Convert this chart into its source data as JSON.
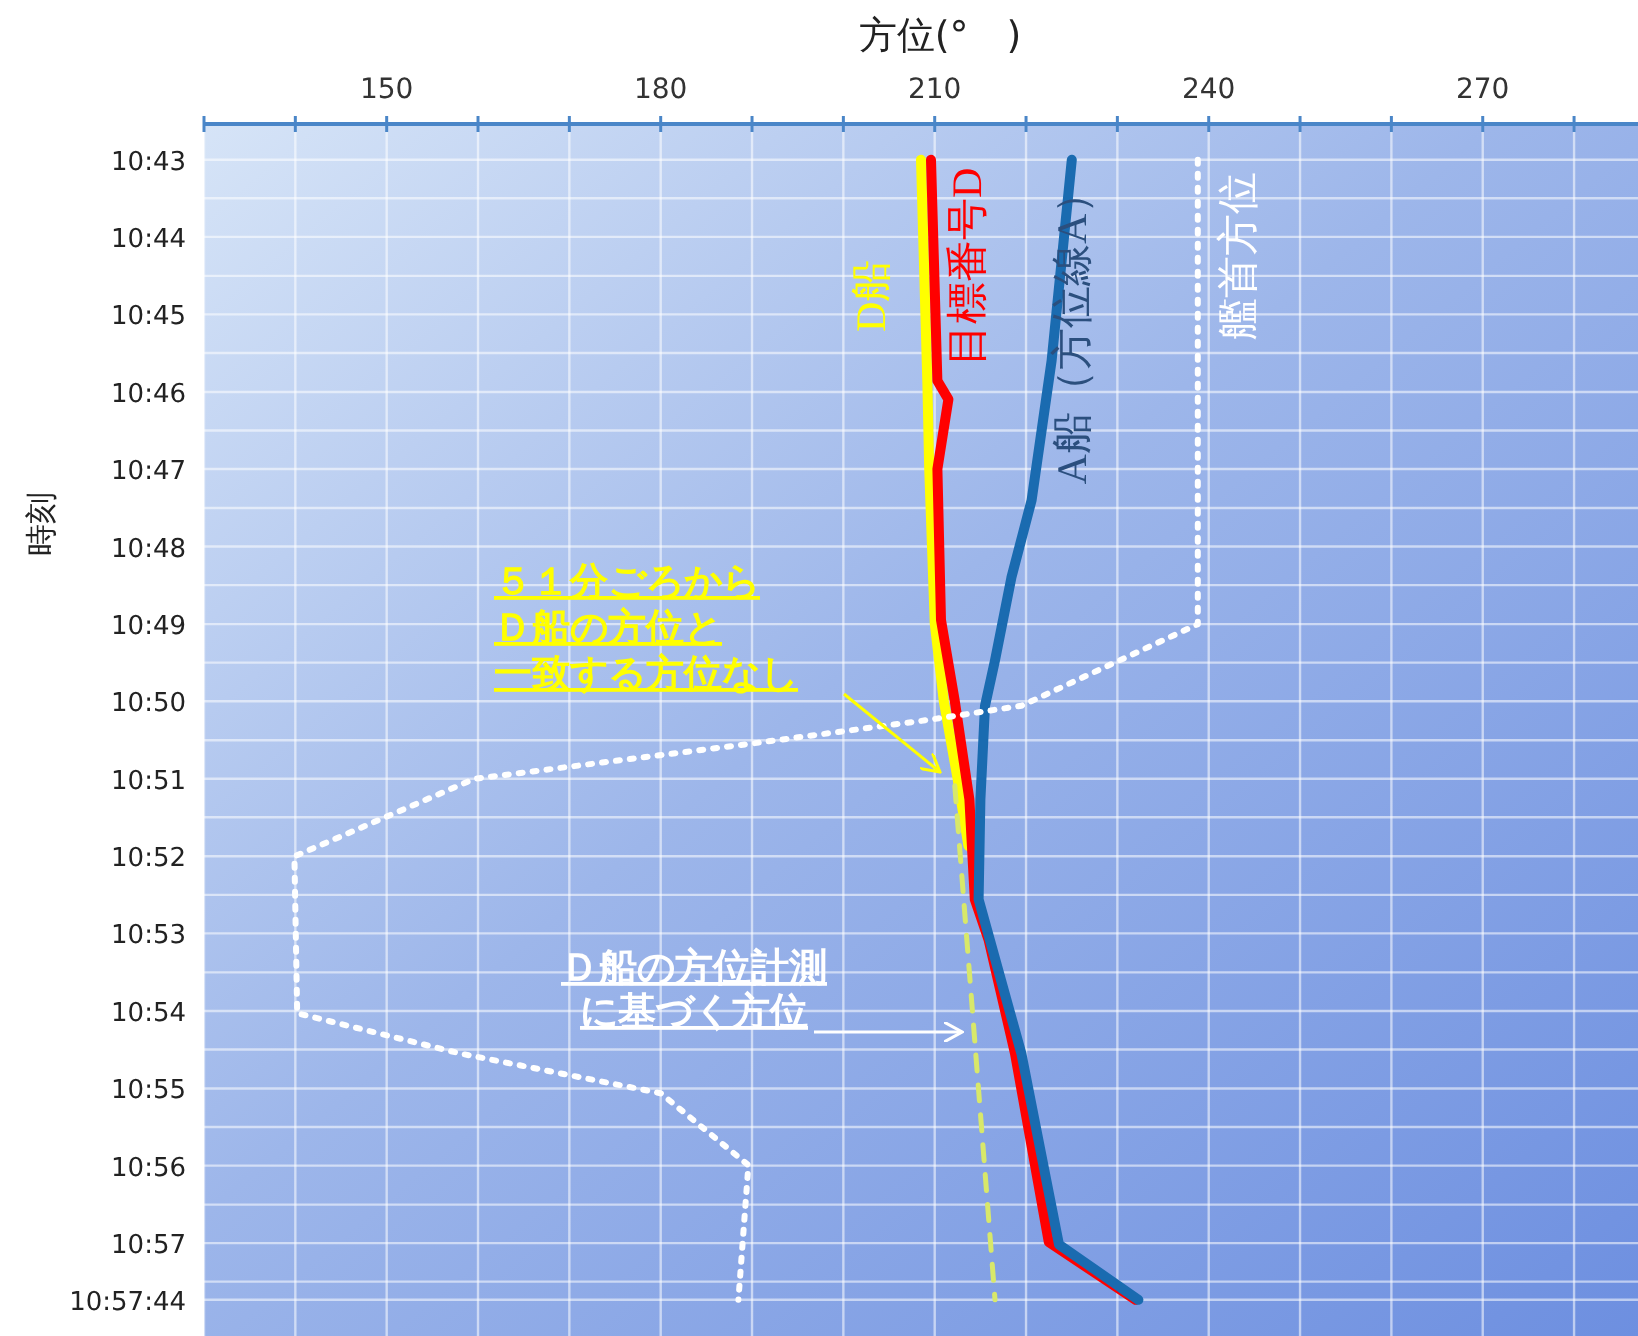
{
  "chart_data": {
    "type": "line",
    "xlabel": "方位(°　)",
    "ylabel": "時刻",
    "xlim": [
      130,
      287
    ],
    "xticks": [
      {
        "value": 130,
        "label": null
      },
      {
        "value": 140,
        "label": null
      },
      150,
      {
        "value": 160,
        "label": null
      },
      {
        "value": 170,
        "label": null
      },
      180,
      {
        "value": 190,
        "label": null
      },
      {
        "value": 200,
        "label": null
      },
      210,
      {
        "value": 220,
        "label": null
      },
      {
        "value": 230,
        "label": null
      },
      240,
      {
        "value": 250,
        "label": null
      },
      {
        "value": 260,
        "label": null
      },
      270,
      {
        "value": 280,
        "label": null
      }
    ],
    "ylim": [
      10.97,
      10.709
    ],
    "yticks": [
      {
        "value": 10.7167,
        "label": "10:43"
      },
      {
        "value": 10.725,
        "label": null
      },
      {
        "value": 10.7333,
        "label": "10:44"
      },
      {
        "value": 10.7417,
        "label": null
      },
      {
        "value": 10.75,
        "label": "10:45"
      },
      {
        "value": 10.7583,
        "label": null
      },
      {
        "value": 10.7667,
        "label": "10:46"
      },
      {
        "value": 10.775,
        "label": null
      },
      {
        "value": 10.7833,
        "label": "10:47"
      },
      {
        "value": 10.7917,
        "label": null
      },
      {
        "value": 10.8,
        "label": "10:48"
      },
      {
        "value": 10.8083,
        "label": null
      },
      {
        "value": 10.8167,
        "label": "10:49"
      },
      {
        "value": 10.825,
        "label": null
      },
      {
        "value": 10.8333,
        "label": "10:50"
      },
      {
        "value": 10.8417,
        "label": null
      },
      {
        "value": 10.85,
        "label": "10:51"
      },
      {
        "value": 10.8583,
        "label": null
      },
      {
        "value": 10.8667,
        "label": "10:52"
      },
      {
        "value": 10.875,
        "label": null
      },
      {
        "value": 10.8833,
        "label": "10:53"
      },
      {
        "value": 10.8917,
        "label": null
      },
      {
        "value": 10.9,
        "label": "10:54"
      },
      {
        "value": 10.9083,
        "label": null
      },
      {
        "value": 10.9167,
        "label": "10:55"
      },
      {
        "value": 10.925,
        "label": null
      },
      {
        "value": 10.9333,
        "label": "10:56"
      },
      {
        "value": 10.9417,
        "label": null
      },
      {
        "value": 10.95,
        "label": "10:57"
      },
      {
        "value": 10.9583,
        "label": null
      },
      {
        "value": 10.9622,
        "label": "10:57:44"
      }
    ],
    "grid": true,
    "marker": "none",
    "series": [
      {
        "name": "D船",
        "color": "#ffff00",
        "line_style": "solid",
        "x": [
          208.5,
          209.2,
          209.4,
          210,
          211,
          212.5,
          213.7
        ],
        "values": [
          10.7167,
          10.765,
          10.7833,
          10.8167,
          10.8333,
          10.85,
          10.8645
        ]
      },
      {
        "name": "目標番号D",
        "color": "#ff0000",
        "line_style": "solid",
        "x": [
          209.6,
          210.3,
          211.5,
          210.3,
          210.7,
          212.2,
          213.8,
          214.4,
          215.9,
          218.8,
          222.5,
          232
        ],
        "values": [
          10.7167,
          10.7643,
          10.7683,
          10.7833,
          10.8158,
          10.8333,
          10.8545,
          10.876,
          10.8847,
          10.9092,
          10.9498,
          10.9622
        ]
      },
      {
        "name": "A船（方位線A）",
        "color": "#1a6bb0",
        "line_style": "solid",
        "x": [
          225,
          222.8,
          220.6,
          218.4,
          216.6,
          215.5,
          215,
          214.8,
          219.5,
          223.6,
          232.3
        ],
        "values": [
          10.7167,
          10.76,
          10.79,
          10.8067,
          10.8245,
          10.8343,
          10.8545,
          10.876,
          10.9092,
          10.9503,
          10.9622
        ]
      },
      {
        "name": "艦首方位",
        "color": "#ffffff",
        "line_style": "dotted",
        "x": [
          238.8,
          238.8,
          219.5,
          209.4,
          189.6,
          159.6,
          139.9,
          140.2,
          158.1,
          180,
          189.6,
          188.5
        ],
        "values": [
          10.7167,
          10.8167,
          10.8343,
          10.8373,
          10.8425,
          10.85,
          10.8667,
          10.9005,
          10.9092,
          10.9177,
          10.9332,
          10.9622
        ]
      },
      {
        "name": "Ｄ船の方位計測に基づく方位",
        "color": "#d8e86a",
        "line_style": "dashed",
        "x": [
          212.2,
          216.6
        ],
        "values": [
          10.8515,
          10.9622
        ]
      }
    ],
    "annotations": [
      "５１分ごろからＤ船の方位と一致する方位なし"
    ]
  }
}
